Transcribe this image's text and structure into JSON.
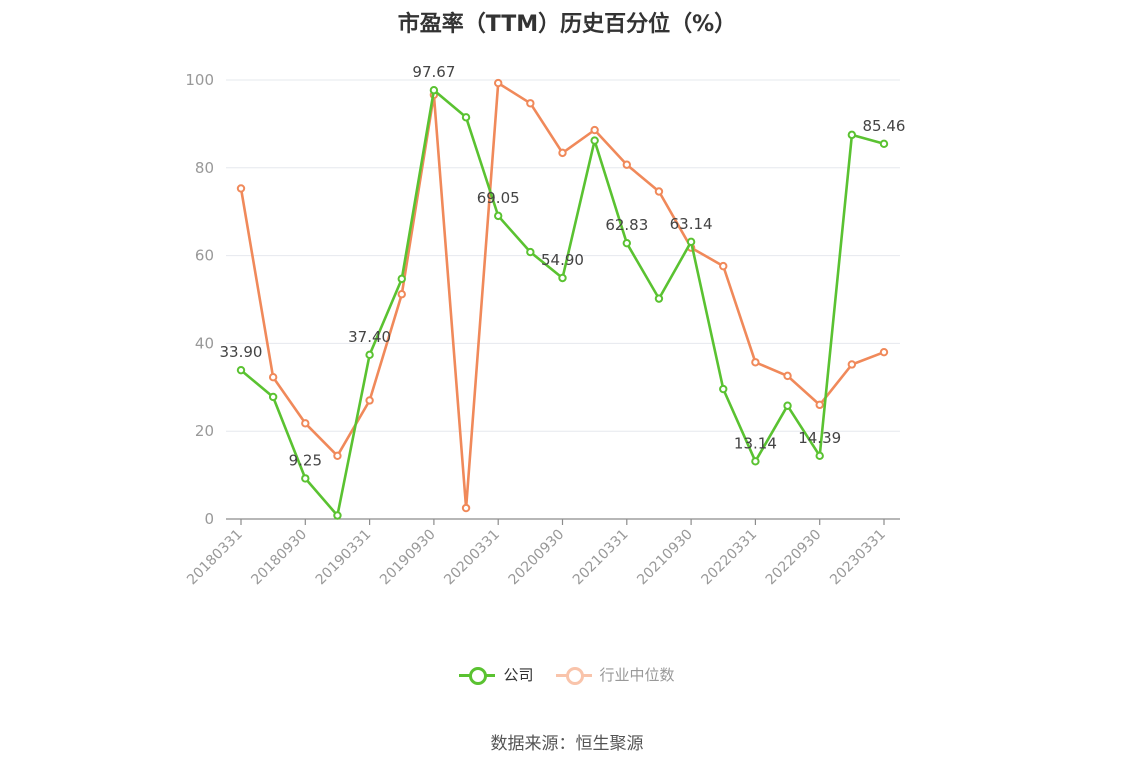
{
  "chart_data": {
    "type": "line",
    "title": "市盈率（TTM）历史百分位（%）",
    "xlabel": "",
    "ylabel": "",
    "ylim": [
      0,
      100
    ],
    "yticks": [
      0,
      20,
      40,
      60,
      80,
      100
    ],
    "grid": true,
    "legend_position": "bottom",
    "x": [
      "20180331",
      "20180630",
      "20180930",
      "20181231",
      "20190331",
      "20190630",
      "20190930",
      "20191231",
      "20200331",
      "20200630",
      "20200930",
      "20201231",
      "20210331",
      "20210630",
      "20210930",
      "20211231",
      "20220331",
      "20220630",
      "20220930",
      "20221231",
      "20230331"
    ],
    "xtick_labels": [
      "20180331",
      "20180930",
      "20190331",
      "20190930",
      "20200331",
      "20200930",
      "20210331",
      "20210930",
      "20220331",
      "20220930",
      "20230331"
    ],
    "series": [
      {
        "name": "公司",
        "color": "#5ac231",
        "values": [
          33.9,
          27.8,
          9.25,
          0.8,
          37.4,
          54.7,
          97.67,
          91.5,
          69.05,
          60.8,
          54.9,
          86.2,
          62.83,
          50.2,
          63.14,
          29.6,
          13.14,
          25.8,
          14.39,
          87.5,
          85.46
        ]
      },
      {
        "name": "行业中位数",
        "color": "#f0895a",
        "values": [
          75.3,
          32.3,
          21.8,
          14.4,
          27.0,
          51.2,
          96.6,
          2.5,
          99.3,
          94.7,
          83.4,
          88.6,
          80.7,
          74.6,
          61.8,
          57.6,
          35.7,
          32.6,
          26.0,
          35.2,
          38.0
        ]
      }
    ],
    "data_labels": [
      {
        "series": 0,
        "index": 0,
        "text": "33.90"
      },
      {
        "series": 0,
        "index": 2,
        "text": "9.25"
      },
      {
        "series": 0,
        "index": 4,
        "text": "37.40"
      },
      {
        "series": 0,
        "index": 6,
        "text": "97.67"
      },
      {
        "series": 0,
        "index": 8,
        "text": "69.05"
      },
      {
        "series": 0,
        "index": 10,
        "text": "54.90"
      },
      {
        "series": 0,
        "index": 12,
        "text": "62.83"
      },
      {
        "series": 0,
        "index": 14,
        "text": "63.14"
      },
      {
        "series": 0,
        "index": 16,
        "text": "13.14"
      },
      {
        "series": 0,
        "index": 18,
        "text": "14.39"
      },
      {
        "series": 0,
        "index": 20,
        "text": "85.46"
      }
    ],
    "source": "数据来源：恒生聚源"
  }
}
